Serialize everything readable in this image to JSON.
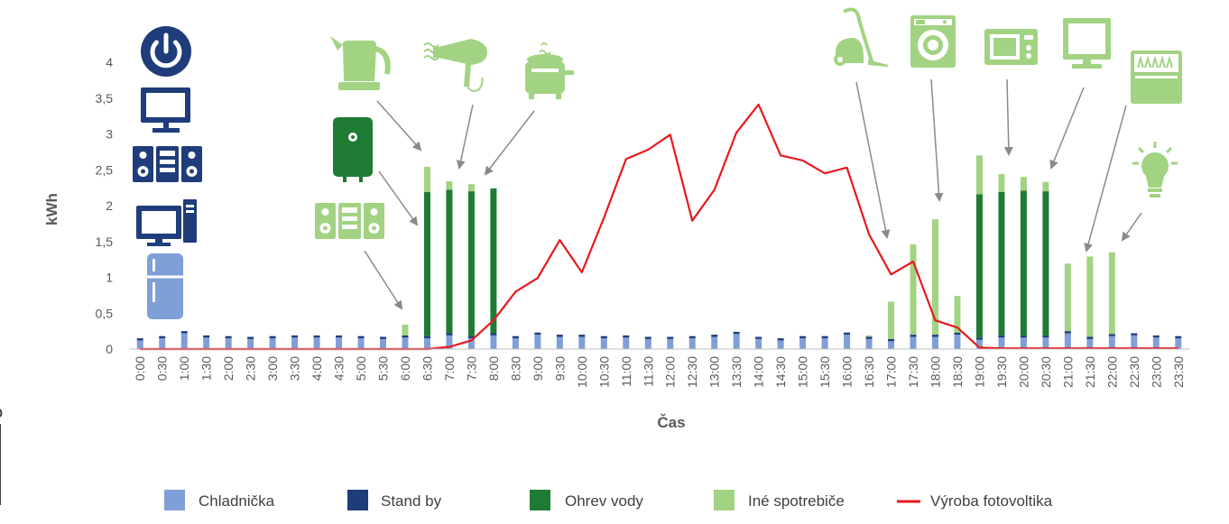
{
  "chart_data": {
    "type": "bar",
    "stacked": true,
    "xlabel": "Čas",
    "ylabel": "kWh",
    "ylim": [
      0,
      4
    ],
    "y_ticks": [
      0,
      0.5,
      1,
      1.5,
      2,
      2.5,
      3,
      3.5,
      4
    ],
    "y_tick_labels": [
      "0",
      "0,5",
      "1",
      "1,5",
      "2",
      "2,5",
      "3",
      "3,5",
      "4"
    ],
    "grid": false,
    "legend_position": "bottom",
    "colors": {
      "chladnicka": "#7f9fd8",
      "standby": "#1f3d7a",
      "ohrev": "#1e7b34",
      "ine": "#a2d383",
      "fv": "#e8191f",
      "icon_blue": "#1f3d7a",
      "icon_green": "#8fc96f",
      "boiler_green": "#1e7b34",
      "arrow": "#8a8a8a",
      "axis": "#bfbfbf",
      "text": "#595959"
    },
    "categories": [
      "0:00",
      "0:30",
      "1:00",
      "1:30",
      "2:00",
      "2:30",
      "3:00",
      "3:30",
      "4:00",
      "4:30",
      "5:00",
      "5:30",
      "6:00",
      "6:30",
      "7:00",
      "7:30",
      "8:00",
      "8:30",
      "9:00",
      "9:30",
      "10:00",
      "10:30",
      "11:00",
      "11:30",
      "12:00",
      "12:30",
      "13:00",
      "13:30",
      "14:00",
      "14:30",
      "15:00",
      "15:30",
      "16:00",
      "16:30",
      "17:00",
      "17:30",
      "18:00",
      "18:30",
      "19:00",
      "19:30",
      "20:00",
      "20:30",
      "21:00",
      "21:30",
      "22:00",
      "22:30",
      "23:00",
      "23:30"
    ],
    "series": [
      {
        "name": "Chladnička",
        "kind": "bar",
        "values": [
          0.12,
          0.15,
          0.22,
          0.16,
          0.15,
          0.14,
          0.15,
          0.16,
          0.16,
          0.16,
          0.15,
          0.14,
          0.16,
          0.15,
          0.19,
          0.15,
          0.19,
          0.15,
          0.2,
          0.17,
          0.17,
          0.15,
          0.16,
          0.14,
          0.14,
          0.15,
          0.17,
          0.21,
          0.14,
          0.12,
          0.15,
          0.15,
          0.2,
          0.14,
          0.11,
          0.17,
          0.17,
          0.2,
          0.13,
          0.16,
          0.16,
          0.16,
          0.22,
          0.14,
          0.18,
          0.19,
          0.16,
          0.15
        ]
      },
      {
        "name": "Stand by",
        "kind": "bar",
        "values": [
          0.03,
          0.03,
          0.03,
          0.03,
          0.03,
          0.03,
          0.03,
          0.03,
          0.03,
          0.03,
          0.03,
          0.03,
          0.03,
          0.03,
          0.03,
          0.03,
          0.03,
          0.03,
          0.03,
          0.03,
          0.03,
          0.03,
          0.03,
          0.03,
          0.03,
          0.03,
          0.03,
          0.03,
          0.03,
          0.03,
          0.03,
          0.03,
          0.03,
          0.03,
          0.03,
          0.03,
          0.03,
          0.03,
          0.03,
          0.03,
          0.03,
          0.03,
          0.03,
          0.03,
          0.03,
          0.03,
          0.03,
          0.03
        ]
      },
      {
        "name": "Ohrev vody",
        "kind": "bar",
        "values": [
          0,
          0,
          0,
          0,
          0,
          0,
          0,
          0,
          0,
          0,
          0,
          0,
          0,
          2.01,
          2.0,
          2.02,
          2.02,
          0,
          0,
          0,
          0,
          0,
          0,
          0,
          0,
          0,
          0,
          0,
          0,
          0,
          0,
          0,
          0,
          0,
          0,
          0,
          0,
          0,
          2.0,
          2.0,
          2.02,
          2.01,
          0,
          0,
          0,
          0,
          0,
          0
        ]
      },
      {
        "name": "Iné spotrebiče",
        "kind": "bar",
        "values": [
          0,
          0,
          0,
          0,
          0,
          0,
          0,
          0,
          0,
          0,
          0,
          0,
          0.15,
          0.35,
          0.12,
          0.1,
          0,
          0,
          0,
          0,
          0,
          0,
          0,
          0,
          0,
          0,
          0,
          0,
          0,
          0,
          0,
          0,
          0,
          0.02,
          0.52,
          1.26,
          1.61,
          0.51,
          0.54,
          0.25,
          0.19,
          0.13,
          0.94,
          1.12,
          1.14,
          0,
          0,
          0
        ]
      },
      {
        "name": "Výroba fotovoltika",
        "kind": "line",
        "values": [
          0,
          0,
          0,
          0,
          0,
          0,
          0,
          0,
          0,
          0,
          0,
          0,
          0,
          0,
          0.03,
          0.12,
          0.4,
          0.8,
          0.99,
          1.52,
          1.07,
          1.83,
          2.65,
          2.78,
          2.99,
          1.79,
          2.22,
          3.02,
          3.41,
          2.7,
          2.63,
          2.45,
          2.53,
          1.6,
          1.04,
          1.22,
          0.4,
          0.3,
          0.02,
          0.01,
          0.01,
          0.01,
          0.01,
          0.01,
          0.01,
          0.01,
          0.01,
          0.01
        ]
      }
    ],
    "icons": [
      "power-icon",
      "monitor-icon",
      "stereo-icon",
      "desktop-computer-icon",
      "fridge-icon",
      "kettle-icon",
      "hairdryer-icon",
      "toaster-icon",
      "boiler-icon",
      "speakers-icon",
      "vacuum-icon",
      "washing-machine-icon",
      "microwave-icon",
      "tv-icon",
      "dishwasher-icon",
      "lightbulb-icon"
    ]
  }
}
